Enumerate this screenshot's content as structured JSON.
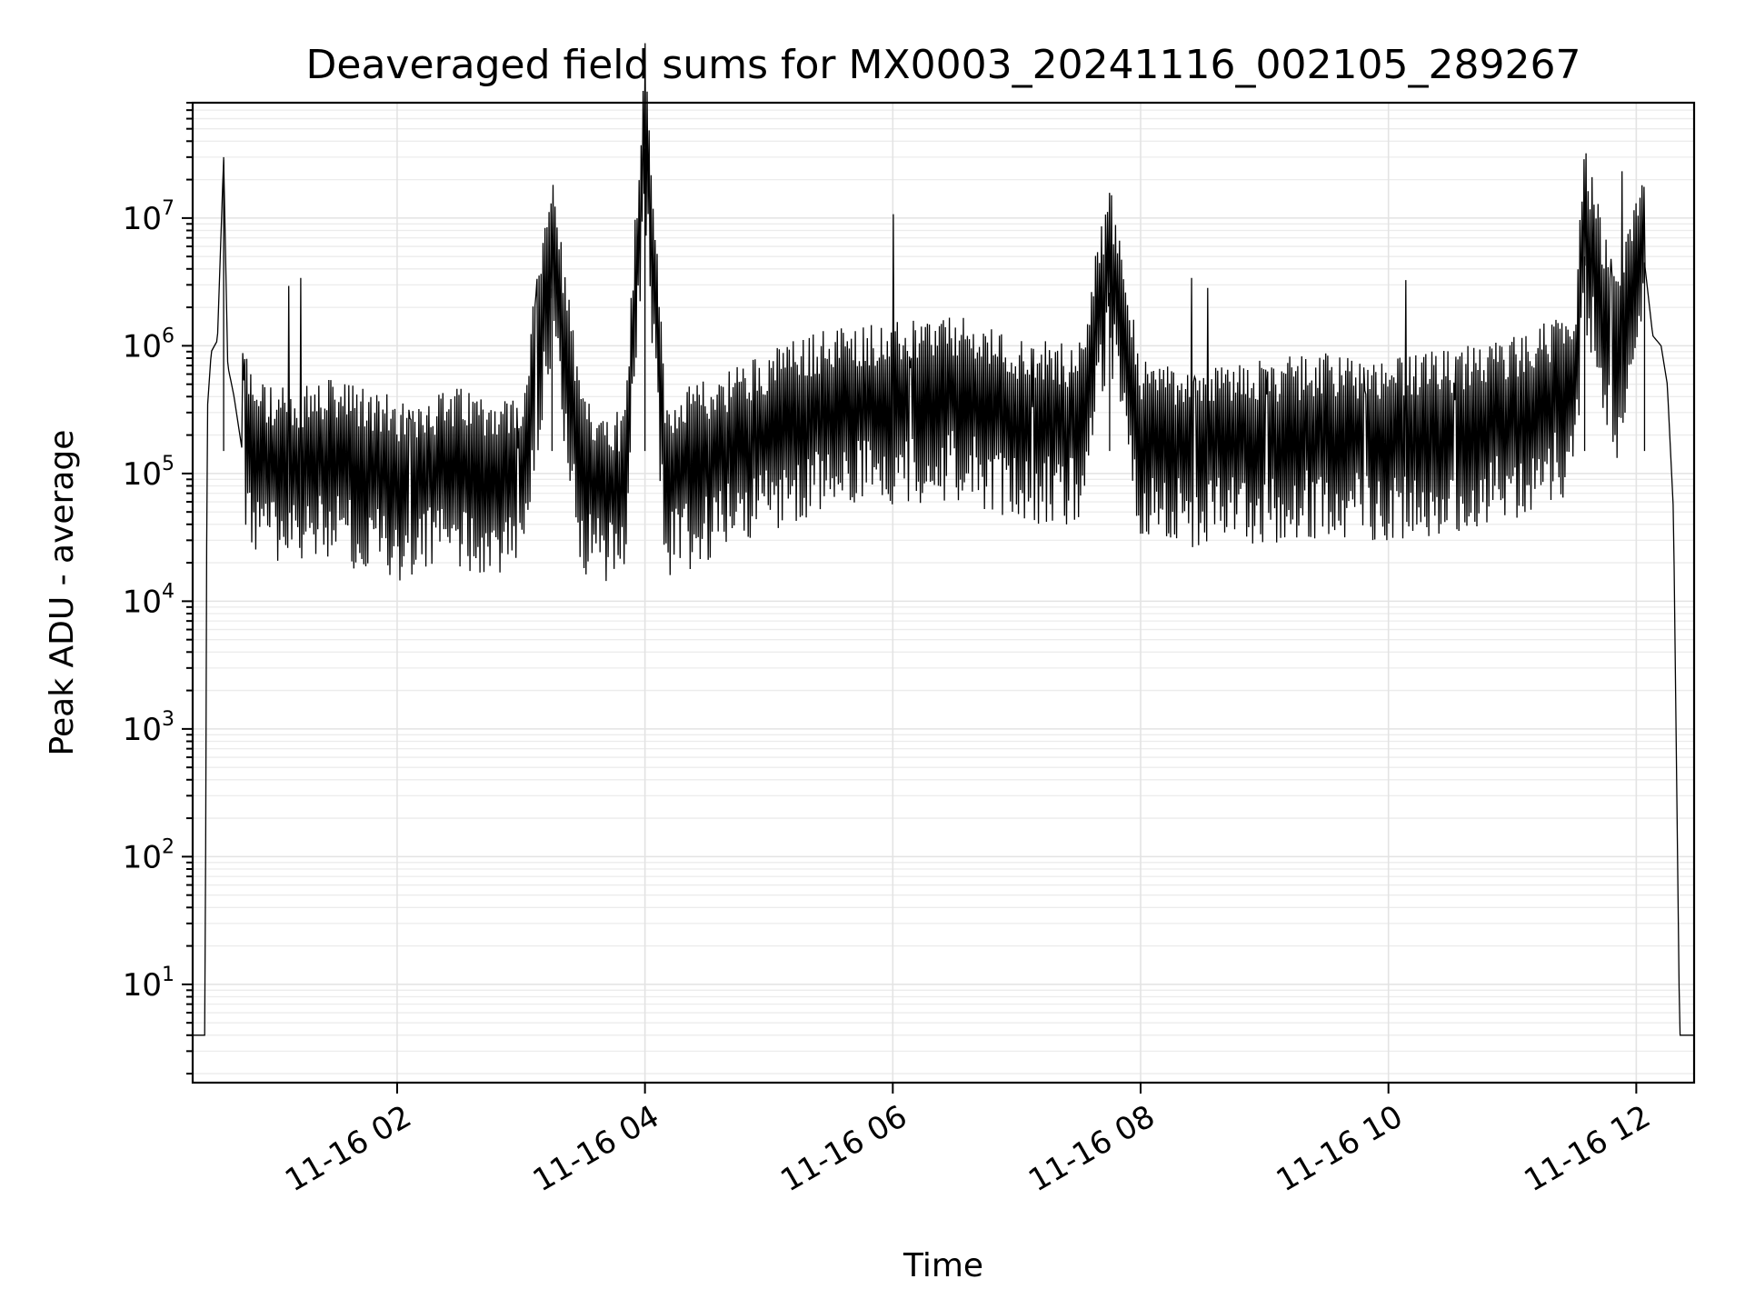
{
  "chart_data": {
    "type": "line",
    "title": "Deaveraged field sums for MX0003_20241116_002105_289267",
    "xlabel": "Time",
    "ylabel": "Peak ADU - average",
    "yscale": "log",
    "ylim": [
      1.7,
      80000000
    ],
    "xlim": [
      "2024-11-16 00:21",
      "2024-11-16 12:28"
    ],
    "xticks": [
      {
        "t": "2024-11-16 02:00",
        "label": "11-16 02"
      },
      {
        "t": "2024-11-16 04:00",
        "label": "11-16 04"
      },
      {
        "t": "2024-11-16 06:00",
        "label": "11-16 06"
      },
      {
        "t": "2024-11-16 08:00",
        "label": "11-16 08"
      },
      {
        "t": "2024-11-16 10:00",
        "label": "11-16 10"
      },
      {
        "t": "2024-11-16 12:00",
        "label": "11-16 12"
      }
    ],
    "yticks": [
      {
        "value": 10,
        "base": "10",
        "exp": "1"
      },
      {
        "value": 100,
        "base": "10",
        "exp": "2"
      },
      {
        "value": 1000,
        "base": "10",
        "exp": "3"
      },
      {
        "value": 10000,
        "base": "10",
        "exp": "4"
      },
      {
        "value": 100000,
        "base": "10",
        "exp": "5"
      },
      {
        "value": 1000000,
        "base": "10",
        "exp": "6"
      },
      {
        "value": 10000000,
        "base": "10",
        "exp": "7"
      }
    ],
    "grid": true,
    "line_color": "#000000",
    "series": [
      {
        "x": [
          "2024-11-16 00:21",
          "2024-11-16 00:27",
          "2024-11-16 00:28",
          "2024-11-16 00:30",
          "2024-11-16 00:33",
          "2024-11-16 00:36",
          "2024-11-16 00:38",
          "2024-11-16 00:41",
          "2024-11-16 00:45",
          "2024-11-16 00:50",
          "2024-11-16 01:00",
          "2024-11-16 01:30",
          "2024-11-16 02:00",
          "2024-11-16 02:30",
          "2024-11-16 03:00",
          "2024-11-16 03:12",
          "2024-11-16 03:15",
          "2024-11-16 03:30",
          "2024-11-16 03:50",
          "2024-11-16 04:00",
          "2024-11-16 04:10",
          "2024-11-16 04:30",
          "2024-11-16 05:00",
          "2024-11-16 05:30",
          "2024-11-16 06:00",
          "2024-11-16 06:30",
          "2024-11-16 07:00",
          "2024-11-16 07:30",
          "2024-11-16 07:45",
          "2024-11-16 08:00",
          "2024-11-16 08:30",
          "2024-11-16 09:00",
          "2024-11-16 09:30",
          "2024-11-16 10:00",
          "2024-11-16 10:30",
          "2024-11-16 11:00",
          "2024-11-16 11:30",
          "2024-11-16 11:35",
          "2024-11-16 11:50",
          "2024-11-16 12:04",
          "2024-11-16 12:08",
          "2024-11-16 12:12",
          "2024-11-16 12:15",
          "2024-11-16 12:18",
          "2024-11-16 12:21",
          "2024-11-16 12:22",
          "2024-11-16 12:28"
        ],
        "values": [
          4,
          4,
          300000,
          900000,
          1100000,
          30000000,
          700000,
          400000,
          150000,
          80000,
          60000,
          70000,
          50000,
          60000,
          50000,
          1500000,
          2800000,
          50000,
          40000,
          35000000,
          50000,
          70000,
          120000,
          180000,
          200000,
          220000,
          150000,
          130000,
          2600000,
          100000,
          90000,
          100000,
          110000,
          100000,
          120000,
          150000,
          250000,
          5000000,
          400000,
          4500000,
          1200000,
          1000000,
          500000,
          50000,
          4,
          4,
          4
        ]
      }
    ]
  }
}
